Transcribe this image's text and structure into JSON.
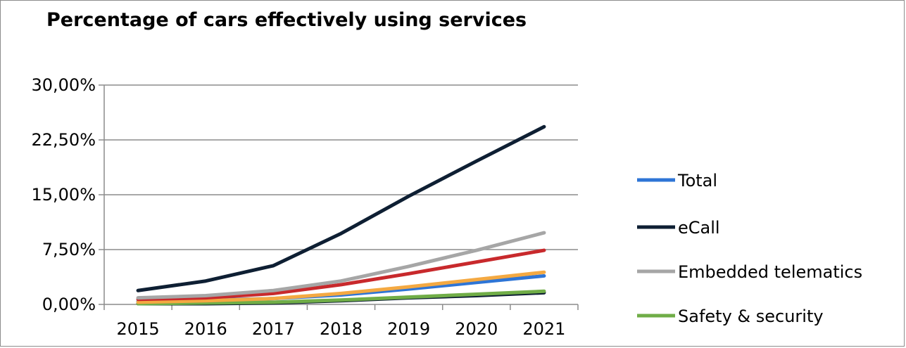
{
  "chart_data": {
    "type": "line",
    "title": "Percentage of cars effectively using services",
    "xlabel": "",
    "ylabel": "",
    "categories": [
      "2015",
      "2016",
      "2017",
      "2018",
      "2019",
      "2020",
      "2021"
    ],
    "y_ticks": [
      "0,00%",
      "7,50%",
      "15,00%",
      "22,50%",
      "30,00%"
    ],
    "ylim": [
      0,
      30
    ],
    "grid": true,
    "legend_position": "right",
    "series": [
      {
        "name": "Total",
        "color": "#2e75d6",
        "values": [
          0.4,
          0.6,
          0.8,
          1.3,
          2.1,
          3.0,
          3.9
        ]
      },
      {
        "name": "eCall",
        "color": "#0e1f33",
        "values": [
          1.9,
          3.2,
          5.3,
          9.7,
          14.8,
          19.6,
          24.3
        ]
      },
      {
        "name": "Embedded telematics",
        "color": "#a6a6a6",
        "values": [
          0.9,
          1.2,
          1.9,
          3.2,
          5.2,
          7.4,
          9.8
        ]
      },
      {
        "name": "Safety & security",
        "color": "#70ad47",
        "values": [
          0.1,
          0.2,
          0.3,
          0.6,
          1.0,
          1.4,
          1.8
        ]
      },
      {
        "name": "",
        "color": "#f4a942",
        "values": [
          0.3,
          0.5,
          0.8,
          1.5,
          2.4,
          3.4,
          4.4
        ]
      },
      {
        "name": "",
        "color": "#c8292c",
        "values": [
          0.7,
          0.9,
          1.5,
          2.7,
          4.2,
          5.8,
          7.4
        ]
      },
      {
        "name": "",
        "color": "#0e1f33",
        "values": [
          0.1,
          0.1,
          0.2,
          0.5,
          0.9,
          1.2,
          1.6
        ]
      }
    ]
  }
}
